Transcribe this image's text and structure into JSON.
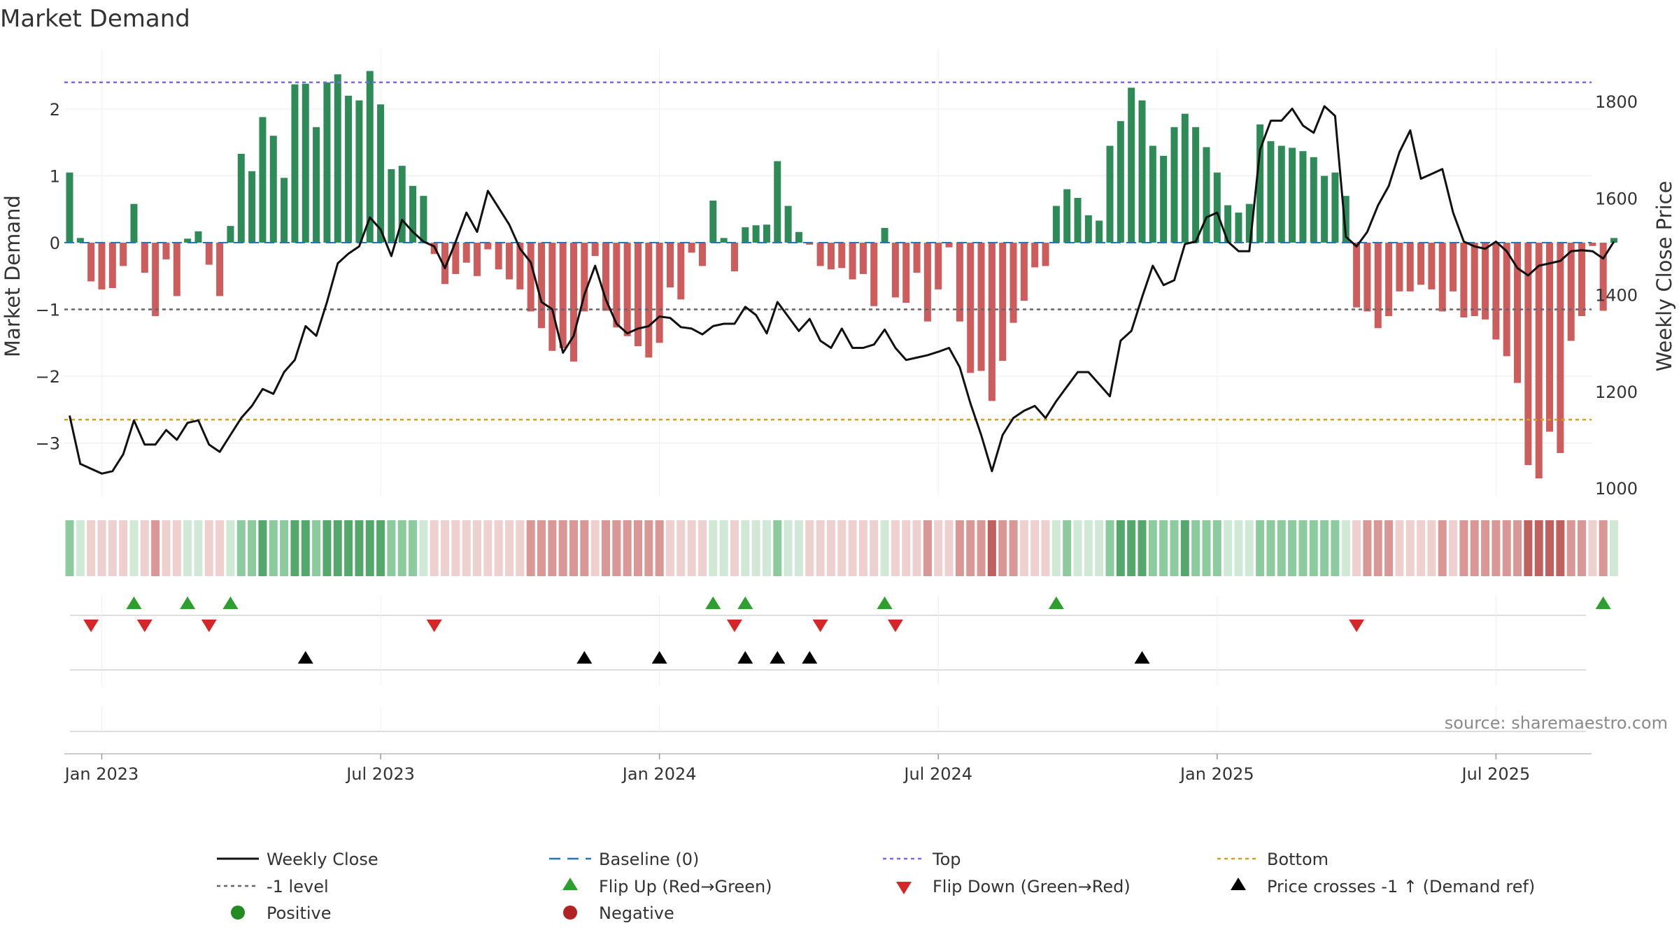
{
  "chart_data": {
    "type": "bar+line",
    "title": "Market Demand",
    "ylabel_left": "Market Demand",
    "ylabel_right": "Weekly Close Price",
    "ylim_left": [
      -3.8,
      2.9
    ],
    "ylim_right": [
      1000,
      1880
    ],
    "yticks_left": [
      2,
      1,
      0,
      -1,
      -2,
      -3
    ],
    "ytick_labels_left": [
      "2",
      "1",
      "0",
      "−1",
      "−2",
      "−3"
    ],
    "yticks_right": [
      1800,
      1600,
      1400,
      1200,
      1000
    ],
    "x_tick_labels": [
      "Jan 2023",
      "Jul 2023",
      "Jan 2024",
      "Jul 2024",
      "Jan 2025",
      "Jul 2025"
    ],
    "x_tick_weeks": [
      3,
      29,
      55,
      81,
      107,
      133
    ],
    "reference_levels": {
      "top": 2.4,
      "minus_one": -1.0,
      "bottom": -2.65
    },
    "demand": [
      1.05,
      0.07,
      -0.58,
      -0.7,
      -0.68,
      -0.35,
      0.58,
      -0.45,
      -1.1,
      -0.25,
      -0.8,
      0.06,
      0.17,
      -0.33,
      -0.8,
      0.25,
      1.33,
      1.07,
      1.88,
      1.6,
      0.97,
      2.37,
      2.38,
      1.73,
      2.4,
      2.52,
      2.2,
      2.13,
      2.57,
      2.07,
      1.1,
      1.15,
      0.85,
      0.7,
      -0.17,
      -0.62,
      -0.47,
      -0.3,
      -0.5,
      -0.1,
      -0.4,
      -0.55,
      -0.7,
      -1.03,
      -1.28,
      -1.62,
      -1.58,
      -1.78,
      -1.03,
      -0.2,
      -1.02,
      -1.27,
      -1.4,
      -1.55,
      -1.72,
      -1.5,
      -0.67,
      -0.85,
      -0.15,
      -0.35,
      0.63,
      0.07,
      -0.43,
      0.23,
      0.26,
      0.27,
      1.22,
      0.55,
      0.16,
      -0.03,
      -0.35,
      -0.4,
      -0.38,
      -0.55,
      -0.47,
      -0.95,
      0.22,
      -0.82,
      -0.9,
      -0.45,
      -1.18,
      -0.7,
      -0.07,
      -1.18,
      -1.95,
      -1.92,
      -2.37,
      -1.77,
      -1.2,
      -0.87,
      -0.37,
      -0.35,
      0.55,
      0.8,
      0.67,
      0.41,
      0.33,
      1.45,
      1.82,
      2.32,
      2.13,
      1.45,
      1.3,
      1.73,
      1.93,
      1.73,
      1.43,
      1.05,
      0.56,
      0.45,
      0.58,
      1.77,
      1.52,
      1.45,
      1.42,
      1.37,
      1.28,
      1.0,
      1.05,
      0.7,
      -0.97,
      -1.03,
      -1.28,
      -1.1,
      -0.73,
      -0.73,
      -0.63,
      -0.7,
      -1.03,
      -0.73,
      -1.12,
      -1.1,
      -1.15,
      -1.45,
      -1.7,
      -2.1,
      -3.33,
      -3.53,
      -2.83,
      -3.15,
      -1.47,
      -1.1,
      -0.05,
      -1.02,
      0.07
    ],
    "weekly_close": [
      1150,
      1050,
      1040,
      1030,
      1035,
      1070,
      1140,
      1090,
      1090,
      1120,
      1100,
      1135,
      1140,
      1090,
      1075,
      1110,
      1145,
      1170,
      1205,
      1195,
      1240,
      1265,
      1335,
      1315,
      1385,
      1465,
      1485,
      1500,
      1560,
      1535,
      1480,
      1555,
      1530,
      1510,
      1500,
      1455,
      1510,
      1570,
      1530,
      1615,
      1580,
      1545,
      1495,
      1467,
      1385,
      1370,
      1280,
      1315,
      1400,
      1460,
      1390,
      1340,
      1320,
      1330,
      1335,
      1355,
      1352,
      1333,
      1330,
      1318,
      1335,
      1340,
      1340,
      1375,
      1358,
      1320,
      1385,
      1355,
      1325,
      1350,
      1305,
      1290,
      1330,
      1290,
      1290,
      1297,
      1328,
      1290,
      1265,
      1270,
      1275,
      1282,
      1290,
      1250,
      1175,
      1110,
      1035,
      1110,
      1145,
      1160,
      1170,
      1145,
      1180,
      1210,
      1240,
      1240,
      1215,
      1190,
      1305,
      1325,
      1395,
      1460,
      1420,
      1430,
      1505,
      1510,
      1560,
      1570,
      1510,
      1490,
      1490,
      1700,
      1760,
      1760,
      1785,
      1750,
      1735,
      1790,
      1770,
      1520,
      1500,
      1530,
      1585,
      1625,
      1695,
      1740,
      1640,
      1650,
      1660,
      1570,
      1510,
      1500,
      1495,
      1510,
      1490,
      1455,
      1440,
      1460,
      1465,
      1470,
      1490,
      1492,
      1490,
      1475,
      1510
    ]
  },
  "strip_colors": {
    "strong_green": "#55a86c",
    "mid_green": "#8ccb9d",
    "light_green": "#cfe9d6",
    "strong_red": "#c0605f",
    "mid_red": "#d99796",
    "light_red": "#eed0cf"
  },
  "bar_colors": {
    "positive": "#2e8b57",
    "negative": "#cd5c5c"
  },
  "signals": {
    "flip_up_weeks": [
      6,
      11,
      15,
      60,
      63,
      76,
      92,
      143
    ],
    "flip_down_weeks": [
      2,
      7,
      13,
      34,
      62,
      70,
      77,
      120
    ],
    "price_cross_weeks": [
      22,
      48,
      55,
      63,
      66,
      69,
      100
    ]
  },
  "legend": [
    {
      "key": "weekly_close",
      "label": "Weekly Close"
    },
    {
      "key": "baseline",
      "label": "Baseline (0)"
    },
    {
      "key": "top",
      "label": "Top"
    },
    {
      "key": "bottom",
      "label": "Bottom"
    },
    {
      "key": "minus_one",
      "label": "-1 level"
    },
    {
      "key": "flip_up",
      "label": "Flip Up (Red→Green)"
    },
    {
      "key": "flip_down",
      "label": "Flip Down (Green→Red)"
    },
    {
      "key": "price_cross",
      "label": "Price crosses -1 ↑ (Demand ref)"
    },
    {
      "key": "positive",
      "label": "Positive"
    },
    {
      "key": "negative",
      "label": "Negative"
    }
  ],
  "legend_colors": {
    "weekly_close": "#111111",
    "baseline": "#1f77b4",
    "top": "#7b68ee",
    "bottom": "#d4a017",
    "minus_one": "#666666",
    "flip_up": "#2ca02c",
    "flip_down": "#d62728",
    "price_cross": "#000000",
    "positive": "#228b22",
    "negative": "#b22222"
  },
  "source": "source: sharemaestro.com"
}
